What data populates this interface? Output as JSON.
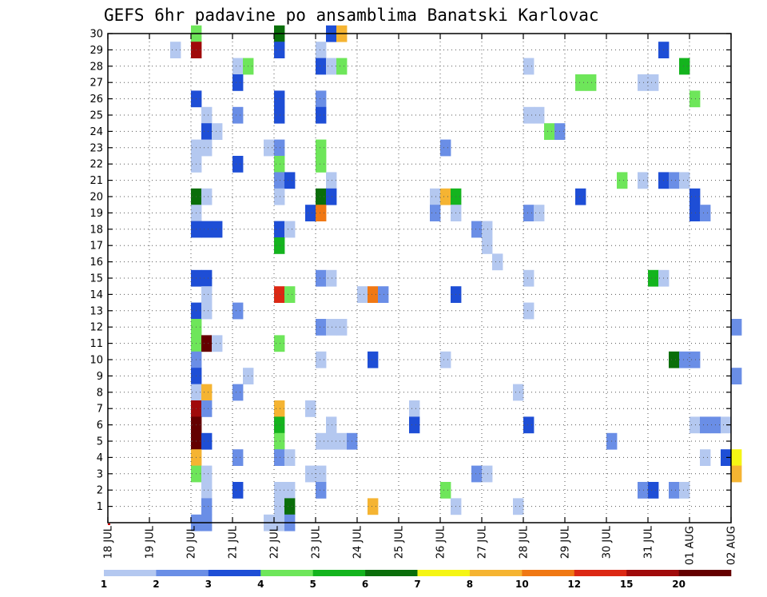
{
  "chart_data": {
    "type": "heatmap",
    "title": "GEFS 6hr padavine po ansamblima Banatski Karlovac",
    "xlabel": "",
    "ylabel": "",
    "x_ticks": [
      "18 JUL",
      "19 JUL",
      "20 JUL",
      "21 JUL",
      "22 JUL",
      "23 JUL",
      "24 JUL",
      "25 JUL",
      "26 JUL",
      "27 JUL",
      "28 JUL",
      "29 JUL",
      "30 JUL",
      "31 JUL",
      "01 AUG",
      "02 AUG"
    ],
    "xlim_days": [
      0,
      15
    ],
    "time_step_hours": 6,
    "y_ticks": [
      1,
      2,
      3,
      4,
      5,
      6,
      7,
      8,
      9,
      10,
      11,
      12,
      13,
      14,
      15,
      16,
      17,
      18,
      19,
      20,
      21,
      22,
      23,
      24,
      25,
      26,
      27,
      28,
      29,
      30
    ],
    "ylim": [
      0,
      30
    ],
    "grid": true,
    "legend_position": "bottom",
    "color_levels": [
      1,
      2,
      3,
      4,
      5,
      6,
      7,
      8,
      10,
      12,
      15,
      20
    ],
    "color_scale": [
      "#b4c8f0",
      "#6a8ee6",
      "#1e4ed6",
      "#6ee65a",
      "#14b41e",
      "#0a6e0a",
      "#f5f514",
      "#f5b432",
      "#f07814",
      "#dc2814",
      "#a00a0a",
      "#640000"
    ],
    "cells": [
      [
        30,
        8,
        "#6ee65a"
      ],
      [
        30,
        16,
        "#0a6e0a"
      ],
      [
        30,
        21,
        "#1e4ed6"
      ],
      [
        30,
        22,
        "#f5b432"
      ],
      [
        29,
        6,
        "#b4c8f0"
      ],
      [
        29,
        8,
        "#a00a0a"
      ],
      [
        29,
        16,
        "#1e4ed6"
      ],
      [
        29,
        20,
        "#b4c8f0"
      ],
      [
        29,
        53,
        "#1e4ed6"
      ],
      [
        28,
        12,
        "#b4c8f0"
      ],
      [
        28,
        13,
        "#6ee65a"
      ],
      [
        28,
        20,
        "#1e4ed6"
      ],
      [
        28,
        21,
        "#b4c8f0"
      ],
      [
        28,
        22,
        "#6ee65a"
      ],
      [
        28,
        40,
        "#b4c8f0"
      ],
      [
        28,
        55,
        "#14b41e"
      ],
      [
        27,
        12,
        "#1e4ed6"
      ],
      [
        27,
        45,
        "#6ee65a"
      ],
      [
        27,
        46,
        "#6ee65a"
      ],
      [
        27,
        51,
        "#b4c8f0"
      ],
      [
        27,
        52,
        "#b4c8f0"
      ],
      [
        26,
        8,
        "#1e4ed6"
      ],
      [
        26,
        16,
        "#1e4ed6"
      ],
      [
        26,
        20,
        "#6a8ee6"
      ],
      [
        26,
        56,
        "#6ee65a"
      ],
      [
        25,
        9,
        "#b4c8f0"
      ],
      [
        25,
        12,
        "#6a8ee6"
      ],
      [
        25,
        16,
        "#1e4ed6"
      ],
      [
        25,
        20,
        "#1e4ed6"
      ],
      [
        25,
        40,
        "#b4c8f0"
      ],
      [
        25,
        41,
        "#b4c8f0"
      ],
      [
        24,
        9,
        "#1e4ed6"
      ],
      [
        24,
        10,
        "#b4c8f0"
      ],
      [
        24,
        42,
        "#6ee65a"
      ],
      [
        24,
        43,
        "#6a8ee6"
      ],
      [
        23,
        8,
        "#b4c8f0"
      ],
      [
        23,
        9,
        "#b4c8f0"
      ],
      [
        23,
        15,
        "#b4c8f0"
      ],
      [
        23,
        16,
        "#6a8ee6"
      ],
      [
        23,
        20,
        "#6ee65a"
      ],
      [
        23,
        32,
        "#6a8ee6"
      ],
      [
        22,
        8,
        "#b4c8f0"
      ],
      [
        22,
        12,
        "#1e4ed6"
      ],
      [
        22,
        16,
        "#6ee65a"
      ],
      [
        22,
        20,
        "#6ee65a"
      ],
      [
        21,
        16,
        "#6a8ee6"
      ],
      [
        21,
        17,
        "#1e4ed6"
      ],
      [
        21,
        21,
        "#b4c8f0"
      ],
      [
        21,
        49,
        "#6ee65a"
      ],
      [
        21,
        51,
        "#b4c8f0"
      ],
      [
        21,
        53,
        "#1e4ed6"
      ],
      [
        21,
        54,
        "#6a8ee6"
      ],
      [
        21,
        55,
        "#b4c8f0"
      ],
      [
        20,
        8,
        "#0a6e0a"
      ],
      [
        20,
        9,
        "#b4c8f0"
      ],
      [
        20,
        16,
        "#b4c8f0"
      ],
      [
        20,
        20,
        "#0a6e0a"
      ],
      [
        20,
        21,
        "#1e4ed6"
      ],
      [
        20,
        31,
        "#b4c8f0"
      ],
      [
        20,
        32,
        "#f5b432"
      ],
      [
        20,
        33,
        "#14b41e"
      ],
      [
        20,
        45,
        "#1e4ed6"
      ],
      [
        20,
        56,
        "#1e4ed6"
      ],
      [
        19,
        8,
        "#b4c8f0"
      ],
      [
        19,
        19,
        "#1e4ed6"
      ],
      [
        19,
        20,
        "#f07814"
      ],
      [
        19,
        31,
        "#6a8ee6"
      ],
      [
        19,
        33,
        "#b4c8f0"
      ],
      [
        19,
        40,
        "#6a8ee6"
      ],
      [
        19,
        41,
        "#b4c8f0"
      ],
      [
        19,
        56,
        "#1e4ed6"
      ],
      [
        19,
        57,
        "#6a8ee6"
      ],
      [
        18,
        8,
        "#1e4ed6"
      ],
      [
        18,
        9,
        "#1e4ed6"
      ],
      [
        18,
        10,
        "#1e4ed6"
      ],
      [
        18,
        16,
        "#1e4ed6"
      ],
      [
        18,
        17,
        "#b4c8f0"
      ],
      [
        18,
        35,
        "#6a8ee6"
      ],
      [
        18,
        36,
        "#b4c8f0"
      ],
      [
        17,
        16,
        "#14b41e"
      ],
      [
        17,
        36,
        "#b4c8f0"
      ],
      [
        16,
        37,
        "#b4c8f0"
      ],
      [
        15,
        8,
        "#1e4ed6"
      ],
      [
        15,
        9,
        "#1e4ed6"
      ],
      [
        15,
        20,
        "#6a8ee6"
      ],
      [
        15,
        21,
        "#b4c8f0"
      ],
      [
        15,
        40,
        "#b4c8f0"
      ],
      [
        15,
        52,
        "#14b41e"
      ],
      [
        15,
        53,
        "#b4c8f0"
      ],
      [
        14,
        9,
        "#b4c8f0"
      ],
      [
        14,
        16,
        "#dc2814"
      ],
      [
        14,
        17,
        "#6ee65a"
      ],
      [
        14,
        24,
        "#b4c8f0"
      ],
      [
        14,
        25,
        "#f07814"
      ],
      [
        14,
        26,
        "#6a8ee6"
      ],
      [
        14,
        33,
        "#1e4ed6"
      ],
      [
        13,
        8,
        "#1e4ed6"
      ],
      [
        13,
        9,
        "#b4c8f0"
      ],
      [
        13,
        12,
        "#6a8ee6"
      ],
      [
        13,
        40,
        "#b4c8f0"
      ],
      [
        12,
        8,
        "#6ee65a"
      ],
      [
        12,
        20,
        "#6a8ee6"
      ],
      [
        12,
        21,
        "#b4c8f0"
      ],
      [
        12,
        22,
        "#b4c8f0"
      ],
      [
        12,
        60,
        "#6a8ee6"
      ],
      [
        11,
        8,
        "#6ee65a"
      ],
      [
        11,
        9,
        "#640000"
      ],
      [
        11,
        10,
        "#b4c8f0"
      ],
      [
        11,
        16,
        "#6ee65a"
      ],
      [
        10,
        8,
        "#6a8ee6"
      ],
      [
        10,
        20,
        "#b4c8f0"
      ],
      [
        10,
        25,
        "#1e4ed6"
      ],
      [
        10,
        32,
        "#b4c8f0"
      ],
      [
        10,
        54,
        "#0a6e0a"
      ],
      [
        10,
        55,
        "#6a8ee6"
      ],
      [
        10,
        56,
        "#6a8ee6"
      ],
      [
        9,
        8,
        "#1e4ed6"
      ],
      [
        9,
        13,
        "#b4c8f0"
      ],
      [
        9,
        60,
        "#6a8ee6"
      ],
      [
        8,
        8,
        "#b4c8f0"
      ],
      [
        8,
        9,
        "#f5b432"
      ],
      [
        8,
        12,
        "#6a8ee6"
      ],
      [
        8,
        39,
        "#b4c8f0"
      ],
      [
        7,
        8,
        "#a00a0a"
      ],
      [
        7,
        9,
        "#6a8ee6"
      ],
      [
        7,
        16,
        "#f5b432"
      ],
      [
        7,
        19,
        "#b4c8f0"
      ],
      [
        7,
        29,
        "#b4c8f0"
      ],
      [
        6,
        8,
        "#640000"
      ],
      [
        6,
        16,
        "#14b41e"
      ],
      [
        6,
        21,
        "#b4c8f0"
      ],
      [
        6,
        29,
        "#1e4ed6"
      ],
      [
        6,
        40,
        "#1e4ed6"
      ],
      [
        6,
        56,
        "#b4c8f0"
      ],
      [
        6,
        57,
        "#6a8ee6"
      ],
      [
        6,
        58,
        "#6a8ee6"
      ],
      [
        6,
        59,
        "#b4c8f0"
      ],
      [
        5,
        8,
        "#640000"
      ],
      [
        5,
        9,
        "#1e4ed6"
      ],
      [
        5,
        16,
        "#6ee65a"
      ],
      [
        5,
        20,
        "#b4c8f0"
      ],
      [
        5,
        21,
        "#b4c8f0"
      ],
      [
        5,
        22,
        "#b4c8f0"
      ],
      [
        5,
        23,
        "#6a8ee6"
      ],
      [
        5,
        48,
        "#6a8ee6"
      ],
      [
        4,
        8,
        "#f5b432"
      ],
      [
        4,
        12,
        "#6a8ee6"
      ],
      [
        4,
        16,
        "#6a8ee6"
      ],
      [
        4,
        17,
        "#b4c8f0"
      ],
      [
        4,
        57,
        "#b4c8f0"
      ],
      [
        4,
        59,
        "#1e4ed6"
      ],
      [
        4,
        60,
        "#f5f514"
      ],
      [
        3,
        8,
        "#6ee65a"
      ],
      [
        3,
        9,
        "#b4c8f0"
      ],
      [
        3,
        19,
        "#b4c8f0"
      ],
      [
        3,
        20,
        "#b4c8f0"
      ],
      [
        3,
        35,
        "#6a8ee6"
      ],
      [
        3,
        36,
        "#b4c8f0"
      ],
      [
        3,
        60,
        "#f5b432"
      ],
      [
        2,
        9,
        "#b4c8f0"
      ],
      [
        2,
        12,
        "#1e4ed6"
      ],
      [
        2,
        16,
        "#b4c8f0"
      ],
      [
        2,
        17,
        "#b4c8f0"
      ],
      [
        2,
        20,
        "#6a8ee6"
      ],
      [
        2,
        32,
        "#6ee65a"
      ],
      [
        2,
        51,
        "#6a8ee6"
      ],
      [
        2,
        52,
        "#1e4ed6"
      ],
      [
        2,
        54,
        "#6a8ee6"
      ],
      [
        2,
        55,
        "#b4c8f0"
      ],
      [
        1,
        9,
        "#6a8ee6"
      ],
      [
        1,
        16,
        "#b4c8f0"
      ],
      [
        1,
        17,
        "#0a6e0a"
      ],
      [
        1,
        25,
        "#f5b432"
      ],
      [
        1,
        33,
        "#b4c8f0"
      ],
      [
        1,
        39,
        "#b4c8f0"
      ],
      [
        0,
        8,
        "#6a8ee6"
      ],
      [
        0,
        9,
        "#6a8ee6"
      ],
      [
        0,
        15,
        "#b4c8f0"
      ],
      [
        0,
        16,
        "#b4c8f0"
      ],
      [
        0,
        17,
        "#6a8ee6"
      ]
    ]
  }
}
